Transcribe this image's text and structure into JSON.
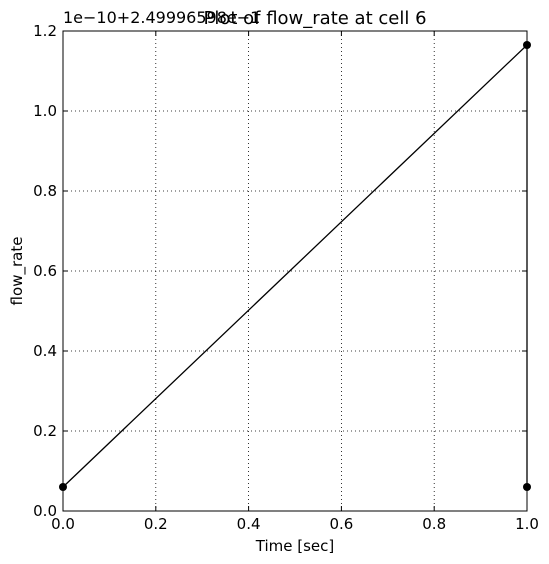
{
  "chart_data": {
    "type": "line",
    "title": "Plot of flow_rate at cell 6",
    "offset_label": "1e−10+2.49996598e−1",
    "xlabel": "Time [sec]",
    "ylabel": "flow_rate",
    "xlim": [
      0.0,
      1.0
    ],
    "ylim": [
      0.0,
      1.2
    ],
    "xticks": [
      "0.0",
      "0.2",
      "0.4",
      "0.6",
      "0.8",
      "1.0"
    ],
    "yticks": [
      "0.0",
      "0.2",
      "0.4",
      "0.6",
      "0.8",
      "1.0",
      "1.2"
    ],
    "grid": true,
    "series": [
      {
        "x": [
          0.0,
          1.0,
          1.0
        ],
        "y": [
          0.06,
          1.165,
          0.06
        ],
        "color": "#000000",
        "marker": "circle"
      }
    ]
  }
}
